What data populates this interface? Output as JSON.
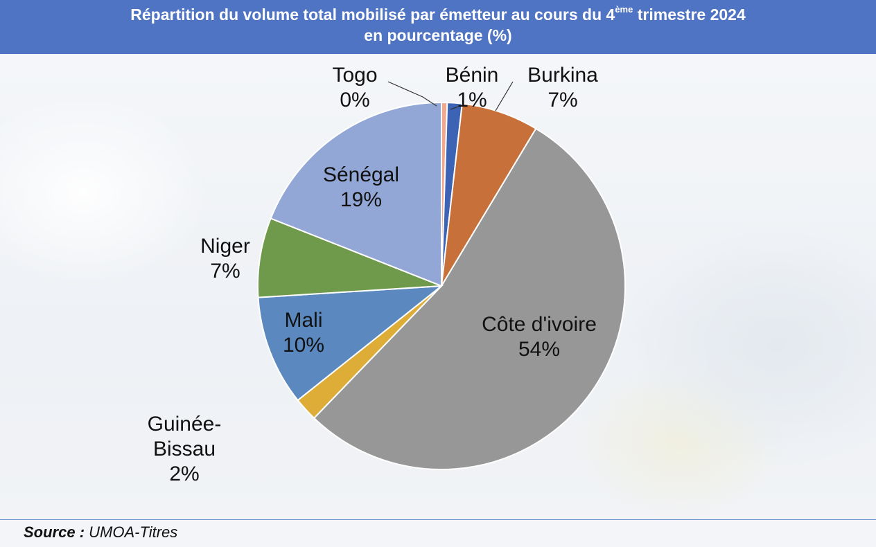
{
  "header": {
    "title_part1": "Répartition du volume total mobilisé par émetteur au cours du 4",
    "title_sup": "ème",
    "title_part2": " trimestre 2024",
    "title_line2": "en pourcentage (%)"
  },
  "chart_data": {
    "type": "pie",
    "title": "Répartition du volume total mobilisé par émetteur au cours du 4ème trimestre 2024 en pourcentage (%)",
    "legend": "none",
    "slices": [
      {
        "name": "Togo",
        "value": 0.5,
        "label": "0%",
        "color": "#f0a891"
      },
      {
        "name": "Bénin",
        "value": 1.3,
        "label": "1%",
        "color": "#3d63b5"
      },
      {
        "name": "Burkina",
        "value": 6.8,
        "label": "7%",
        "color": "#c8703a"
      },
      {
        "name": "Côte d'ivoire",
        "value": 53.6,
        "label": "54%",
        "color": "#979797"
      },
      {
        "name": "Guinée-Bissau",
        "value": 2.1,
        "label": "2%",
        "color": "#ddad38"
      },
      {
        "name": "Mali",
        "value": 9.7,
        "label": "10%",
        "color": "#5b89bf"
      },
      {
        "name": "Niger",
        "value": 7.0,
        "label": "7%",
        "color": "#6f9a4b"
      },
      {
        "name": "Sénégal",
        "value": 19.0,
        "label": "19%",
        "color": "#93a7d6"
      }
    ]
  },
  "footer": {
    "source_label": "Source :",
    "source_value": " UMOA-Titres"
  }
}
